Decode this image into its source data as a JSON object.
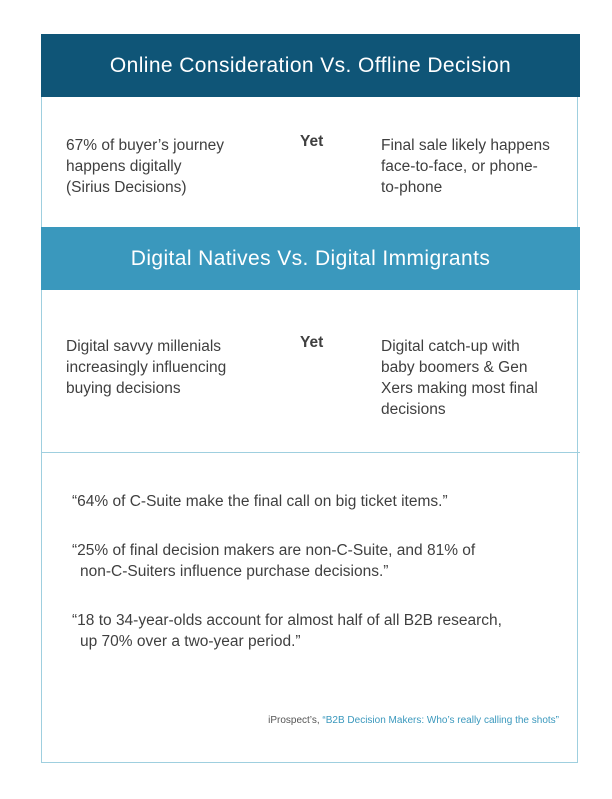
{
  "section1": {
    "title": "Online Consideration Vs. Offline Decision",
    "left_lines": [
      "67% of buyer’s journey",
      "happens digitally",
      "(Sirius Decisions)"
    ],
    "middle": "Yet",
    "right_lines": [
      "Final sale likely happens",
      "face-to-face, or phone-",
      "to-phone"
    ]
  },
  "section2": {
    "title": "Digital Natives Vs. Digital Immigrants",
    "left_lines": [
      "Digital savvy millenials",
      "increasingly influencing",
      "buying decisions"
    ],
    "middle": "Yet",
    "right_lines": [
      "Digital catch-up with",
      "baby boomers & Gen",
      "Xers making most final",
      "decisions"
    ]
  },
  "quotes": [
    {
      "line1": "“64% of C-Suite make the final call on big ticket items.”",
      "line2": ""
    },
    {
      "line1": "“25% of final decision makers are non-C-Suite, and 81% of",
      "line2": "non-C-Suiters influence purchase decisions.”"
    },
    {
      "line1": "“18 to 34-year-olds account for almost half of all B2B research,",
      "line2": "up 70% over a two-year period.”"
    }
  ],
  "source": {
    "prefix": "iProspect’s, ",
    "link_text": "“B2B Decision Makers: Who’s really calling the shots”"
  },
  "colors": {
    "band_dark": "#0f5577",
    "band_light": "#3a98bd",
    "border": "#9fcfdf",
    "link": "#3a98bd"
  }
}
